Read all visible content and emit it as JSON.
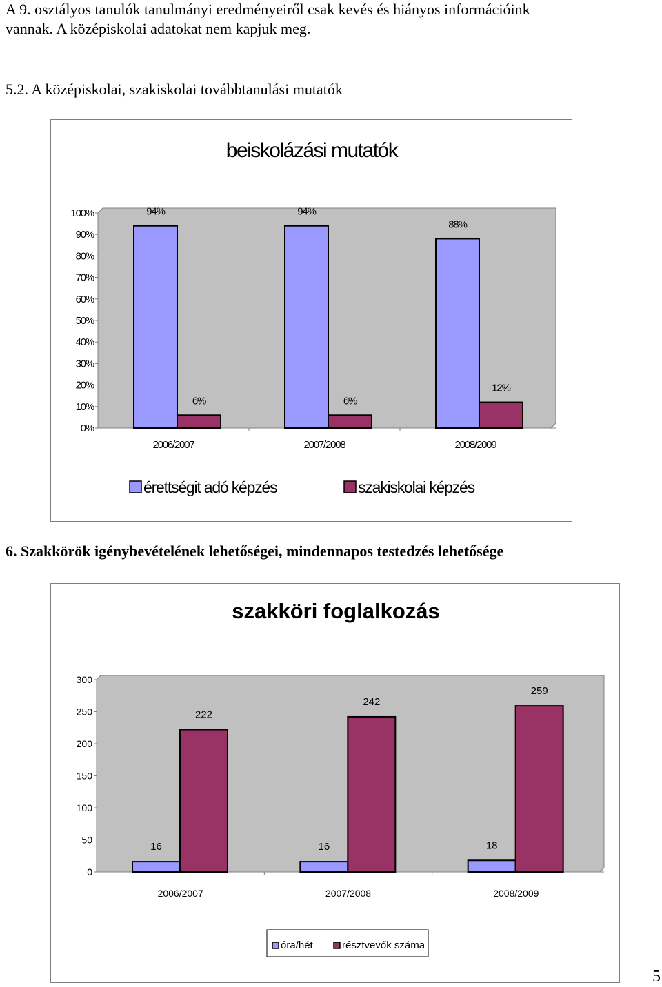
{
  "intro": {
    "line1": "A 9. osztályos tanulók tanulmányi eredményeiről csak kevés és hiányos információink",
    "line2": "vannak. A középiskolai adatokat nem kapjuk meg."
  },
  "section_52": {
    "heading": "5.2. A középiskolai, szakiskolai továbbtanulási mutatók"
  },
  "section_6": {
    "heading": "6. Szakkörök igénybevételének lehetőségei, mindennapos testedzés lehetősége"
  },
  "page_number": "5",
  "colors": {
    "series_blue": "#9999ff",
    "series_maroon": "#993366",
    "plot_bg": "#c0c0c0"
  },
  "chart_data": [
    {
      "type": "bar",
      "title": "beiskolázási mutatók",
      "categories": [
        "2006/2007",
        "2007/2008",
        "2008/2009"
      ],
      "series": [
        {
          "name": "érettségit adó képzés",
          "values": [
            94,
            94,
            88
          ],
          "labels": [
            "94%",
            "94%",
            "88%"
          ]
        },
        {
          "name": "szakiskolai képzés",
          "values": [
            6,
            6,
            12
          ],
          "labels": [
            "6%",
            "6%",
            "12%"
          ]
        }
      ],
      "ylim": [
        0,
        100
      ],
      "yticks": [
        "100%",
        "90%",
        "80%",
        "70%",
        "60%",
        "50%",
        "40%",
        "30%",
        "20%",
        "10%",
        "0%"
      ],
      "grid": false,
      "legend": "bottom"
    },
    {
      "type": "bar",
      "title": "szakköri foglalkozás",
      "categories": [
        "2006/2007",
        "2007/2008",
        "2008/2009"
      ],
      "series": [
        {
          "name": "óra/hét",
          "values": [
            16,
            16,
            18
          ],
          "labels": [
            "16",
            "16",
            "18"
          ]
        },
        {
          "name": "résztvevők száma",
          "values": [
            222,
            242,
            259
          ],
          "labels": [
            "222",
            "242",
            "259"
          ]
        }
      ],
      "ylim": [
        0,
        300
      ],
      "yticks": [
        "300",
        "250",
        "200",
        "150",
        "100",
        "50",
        "0"
      ],
      "grid": false,
      "legend": "bottom"
    }
  ]
}
